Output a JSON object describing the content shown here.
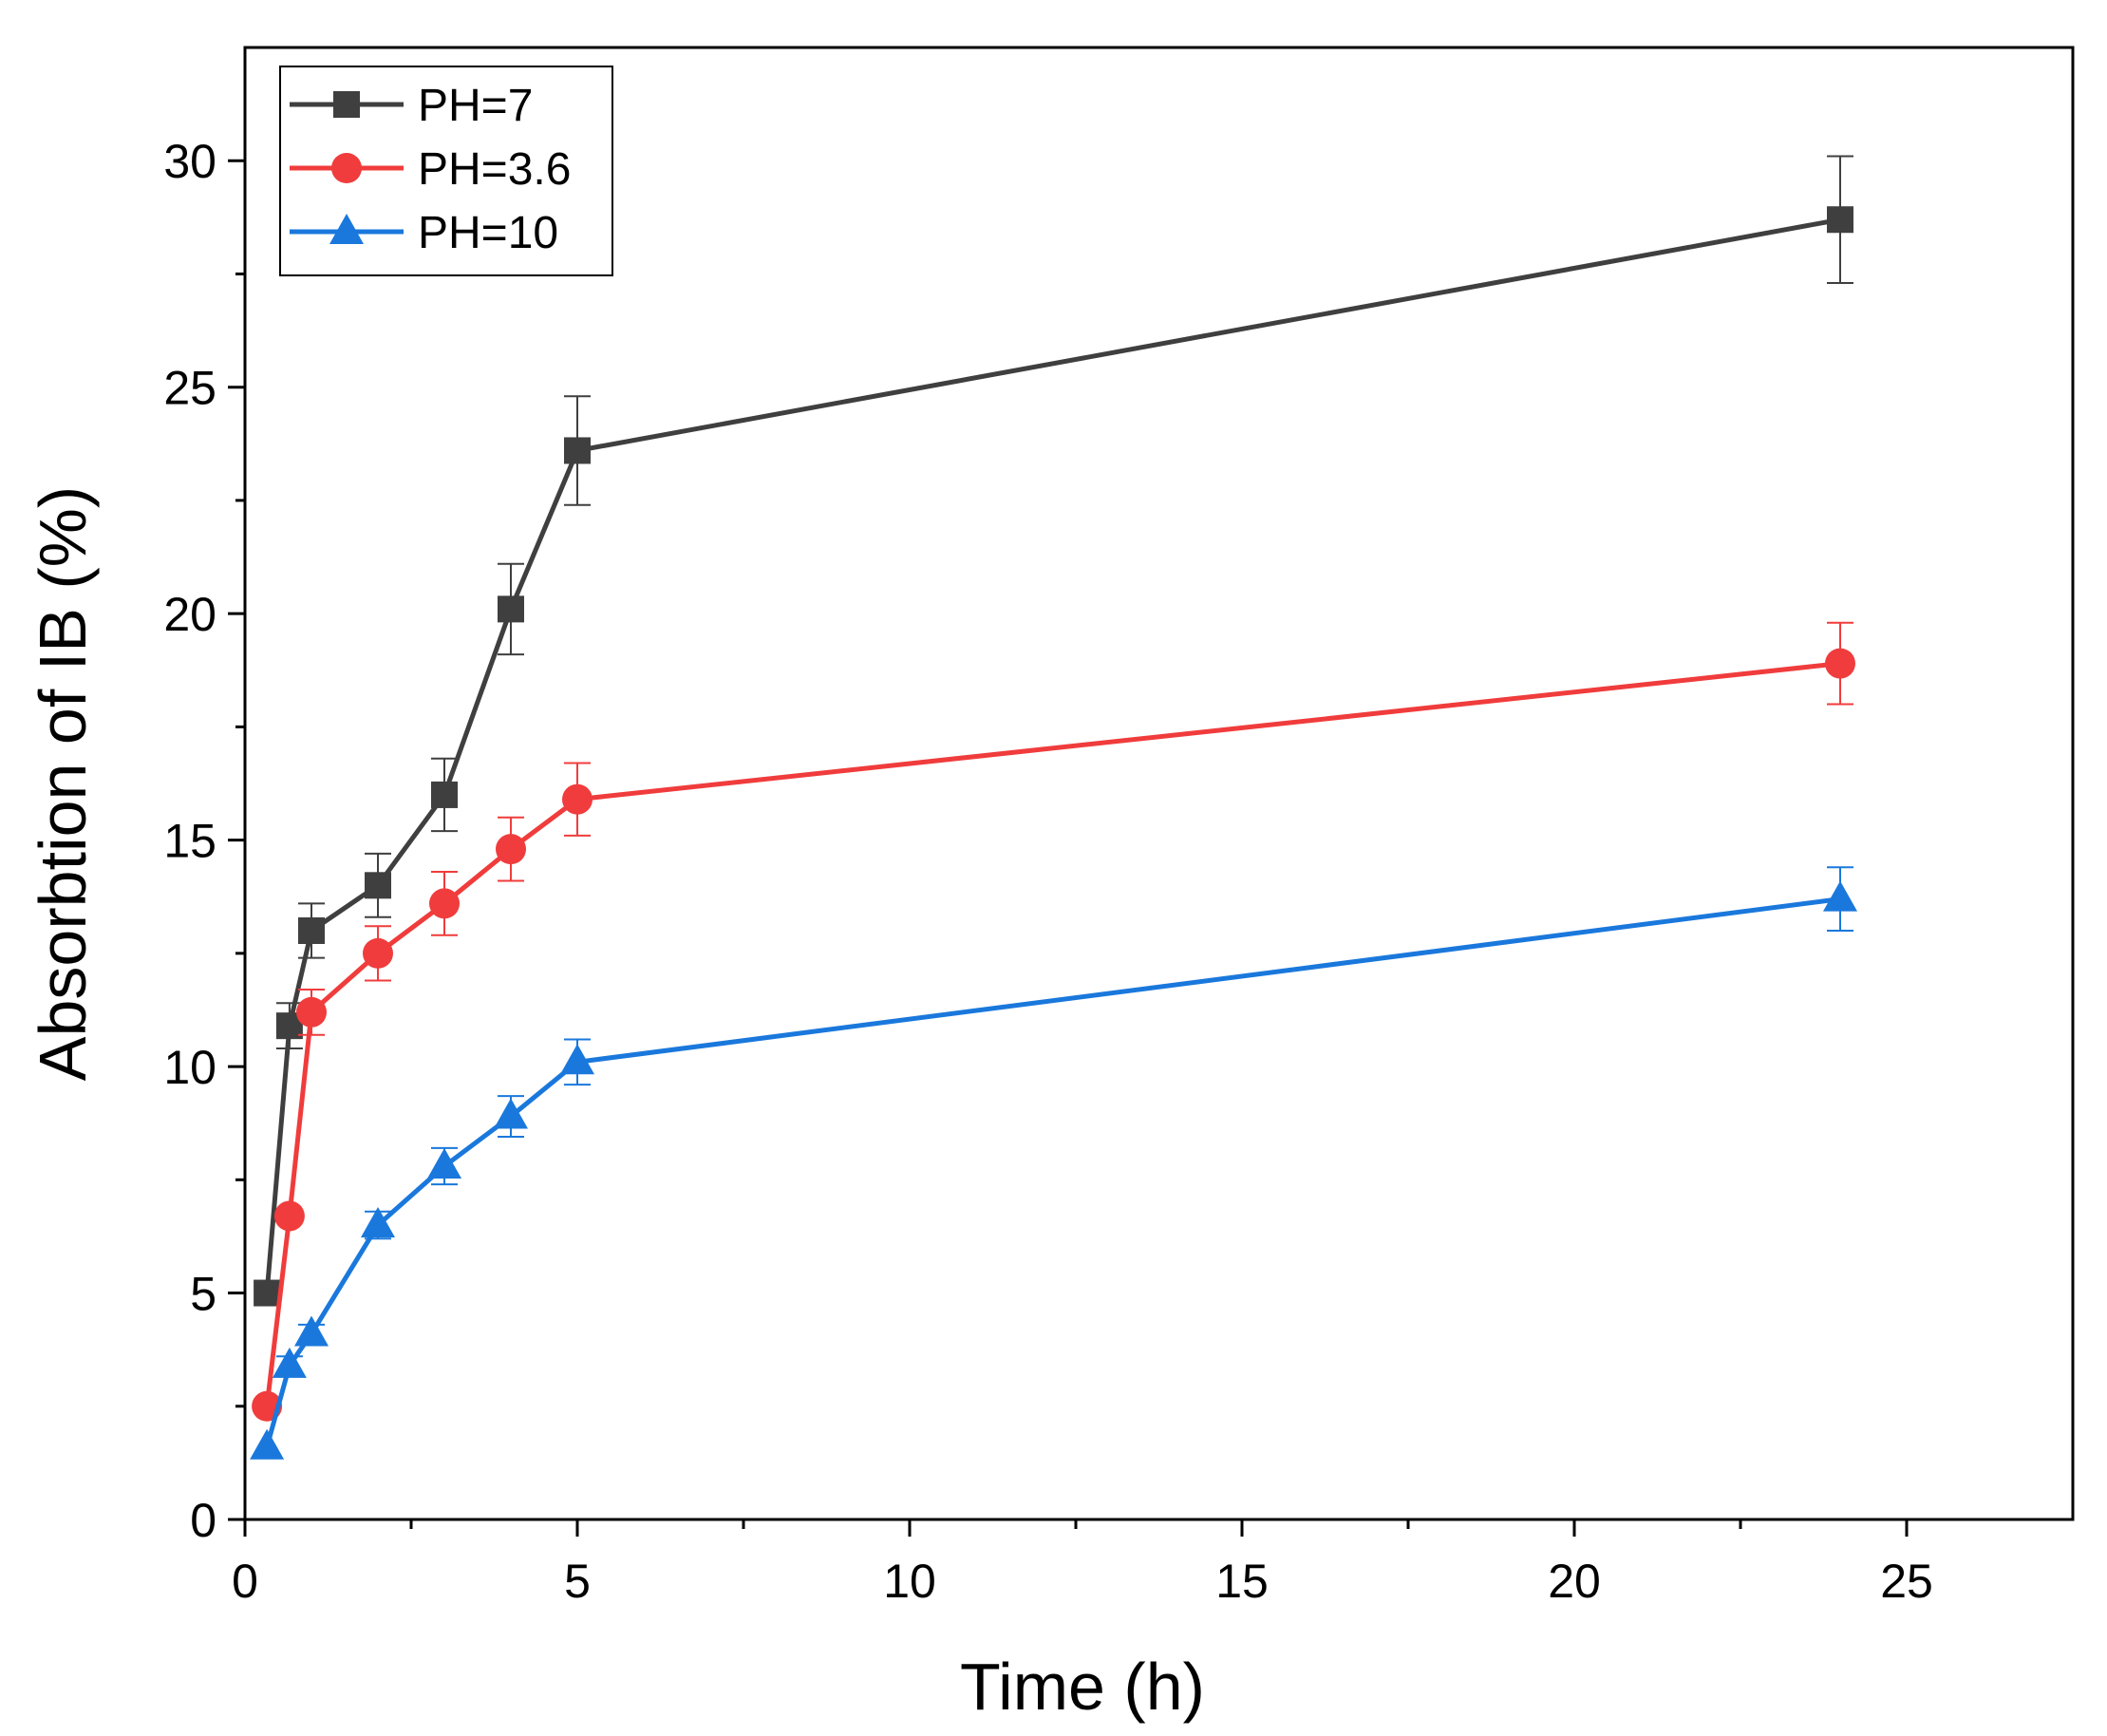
{
  "chart_data": {
    "type": "line",
    "title": "",
    "xlabel": "Time (h)",
    "ylabel": "Absorbtion of IB (%)",
    "xlim": [
      0,
      27.5
    ],
    "ylim": [
      0,
      32.5
    ],
    "xticks": [
      0,
      5,
      10,
      15,
      20,
      25
    ],
    "yticks": [
      0,
      5,
      10,
      15,
      20,
      25,
      30
    ],
    "xticks_minor": [
      2.5,
      7.5,
      12.5,
      17.5,
      22.5
    ],
    "yticks_minor": [
      2.5,
      7.5,
      12.5,
      17.5,
      22.5,
      27.5
    ],
    "grid": false,
    "legend_position": "top-left",
    "series": [
      {
        "name": "PH=7",
        "color": "#3f3f3f",
        "marker": "square",
        "x": [
          0.33,
          0.67,
          1,
          2,
          3,
          4,
          5,
          24
        ],
        "y": [
          5.0,
          10.9,
          13.0,
          14.0,
          16.0,
          20.1,
          23.6,
          28.7
        ],
        "err": [
          0.0,
          0.5,
          0.6,
          0.7,
          0.8,
          1.0,
          1.2,
          1.4
        ]
      },
      {
        "name": "PH=3.6",
        "color": "#f03c3c",
        "marker": "circle",
        "x": [
          0.33,
          0.67,
          1,
          2,
          3,
          4,
          5,
          24
        ],
        "y": [
          2.5,
          6.7,
          11.2,
          12.5,
          13.6,
          14.8,
          15.9,
          18.9
        ],
        "err": [
          0.0,
          0.0,
          0.5,
          0.6,
          0.7,
          0.7,
          0.8,
          0.9
        ]
      },
      {
        "name": "PH=10",
        "color": "#1a78dc",
        "marker": "triangle",
        "x": [
          0.33,
          0.67,
          1,
          2,
          3,
          4,
          5,
          24
        ],
        "y": [
          1.6,
          3.4,
          4.1,
          6.5,
          7.8,
          8.9,
          10.1,
          13.7
        ],
        "err": [
          0.0,
          0.2,
          0.2,
          0.3,
          0.4,
          0.45,
          0.5,
          0.7
        ]
      }
    ]
  }
}
